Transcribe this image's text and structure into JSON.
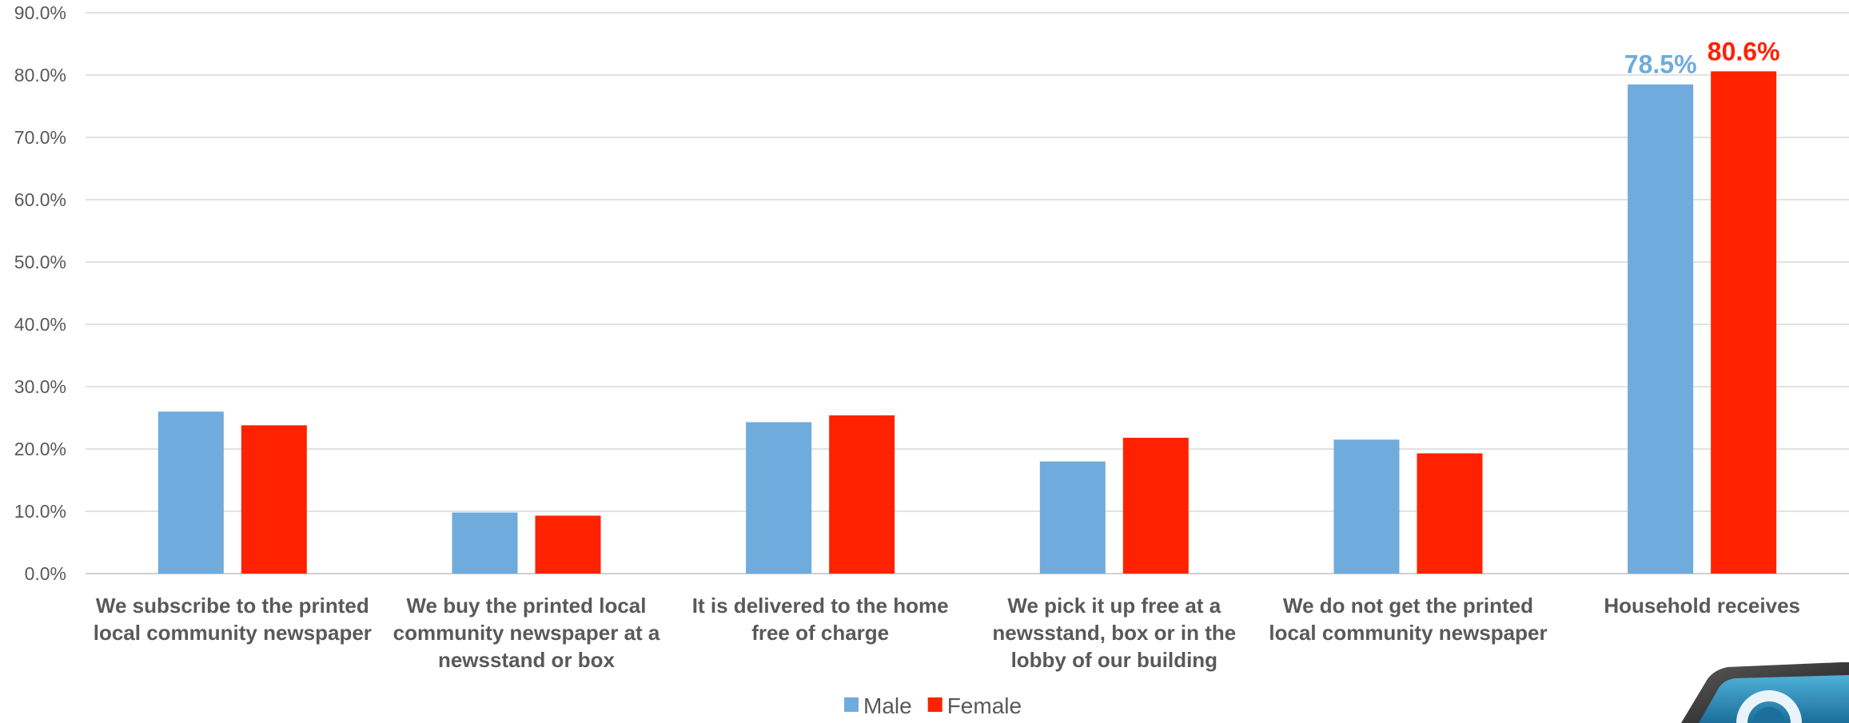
{
  "chart_data": {
    "type": "bar",
    "title": "",
    "xlabel": "",
    "ylabel": "",
    "ylim": [
      0,
      90
    ],
    "y_tick_step": 10,
    "y_tick_format": "percent_1dp",
    "grid": true,
    "legend_position": "bottom",
    "categories": [
      [
        "We subscribe to the printed",
        "local community newspaper"
      ],
      [
        "We buy the printed local",
        "community newspaper at a",
        "newsstand or box"
      ],
      [
        "It is delivered to the home",
        "free of charge"
      ],
      [
        "We pick it up free at a",
        "newsstand, box or in the",
        "lobby of our building"
      ],
      [
        "We do not get the printed",
        "local community newspaper"
      ],
      [
        "Household receives"
      ]
    ],
    "series": [
      {
        "name": "Male",
        "color": "#6FABDC",
        "values": [
          26.0,
          9.8,
          24.3,
          18.0,
          21.5,
          78.5
        ]
      },
      {
        "name": "Female",
        "color": "#FF2200",
        "values": [
          23.8,
          9.3,
          25.4,
          21.8,
          19.3,
          80.6
        ]
      }
    ],
    "data_labels": [
      {
        "series": 0,
        "category": 5,
        "text": "78.5%"
      },
      {
        "series": 1,
        "category": 5,
        "text": "80.6%"
      }
    ]
  },
  "logo": {
    "icon": "magnifier-logo-icon"
  }
}
